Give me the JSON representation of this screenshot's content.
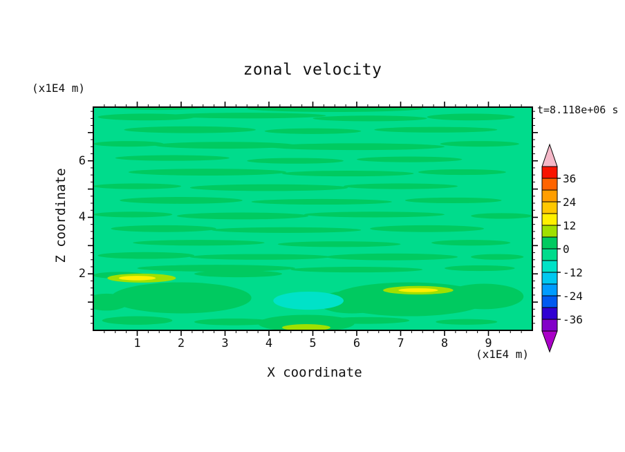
{
  "title": "zonal velocity",
  "timestamp": "t=8.118e+06 s",
  "x_axis": {
    "label": "X coordinate",
    "unit": "(x1E4 m)",
    "ticks": [
      1,
      2,
      3,
      4,
      5,
      6,
      7,
      8,
      9
    ]
  },
  "z_axis": {
    "label": "Z coordinate",
    "unit": "(x1E4 m)",
    "ticks": [
      2,
      4,
      6
    ]
  },
  "colorbar": {
    "labels": [
      "36",
      "24",
      "12",
      "0",
      "-12",
      "-24",
      "-36"
    ],
    "band_colors_top_to_bottom": [
      "#f81400",
      "#ff6400",
      "#ff9e00",
      "#ffc800",
      "#fff000",
      "#a0e000",
      "#00ca60",
      "#00dc8c",
      "#00e2c8",
      "#00c8f0",
      "#009cff",
      "#005af0",
      "#3000d2",
      "#8200c8"
    ],
    "arrow_top_color": "#f5b8c8",
    "arrow_bottom_color": "#aa00c8"
  },
  "chart_data": {
    "type": "heatmap",
    "title": "zonal velocity",
    "xlabel": "X coordinate (x1E4 m)",
    "ylabel": "Z coordinate (x1E4 m)",
    "time_label": "t=8.118e+06 s",
    "x_range": [
      0,
      10
    ],
    "z_range": [
      0,
      7.9
    ],
    "contour_levels": [
      -42,
      -36,
      -30,
      -24,
      -18,
      -12,
      -6,
      0,
      6,
      12,
      18,
      24,
      30,
      36,
      42
    ],
    "background_value_band": "-6 to 0",
    "background_color": "#00dc8c",
    "band_palette": {
      "g": "#00ca60",
      "yg": "#a0e000",
      "y": "#fff000",
      "t": "#00e2c8"
    },
    "features": [
      {
        "band": "g",
        "blobs": [
          [
            1.2,
            7.55,
            1.1,
            0.12
          ],
          [
            3.5,
            7.6,
            1.8,
            0.1
          ],
          [
            6.3,
            7.5,
            1.3,
            0.1
          ],
          [
            8.6,
            7.55,
            1.0,
            0.12
          ],
          [
            5.5,
            7.85,
            2.0,
            0.12
          ],
          [
            1.5,
            7.9,
            1.0,
            0.1
          ],
          [
            2.2,
            7.1,
            1.5,
            0.12
          ],
          [
            5.0,
            7.05,
            1.1,
            0.1
          ],
          [
            7.8,
            7.1,
            1.4,
            0.1
          ],
          [
            0.8,
            6.6,
            0.8,
            0.1
          ],
          [
            3.0,
            6.55,
            1.6,
            0.12
          ],
          [
            6.0,
            6.5,
            2.0,
            0.12
          ],
          [
            8.8,
            6.6,
            0.9,
            0.1
          ],
          [
            1.8,
            6.1,
            1.3,
            0.1
          ],
          [
            4.6,
            6.0,
            1.1,
            0.1
          ],
          [
            7.2,
            6.05,
            1.2,
            0.1
          ],
          [
            2.6,
            5.6,
            1.8,
            0.12
          ],
          [
            5.8,
            5.55,
            1.5,
            0.1
          ],
          [
            8.4,
            5.6,
            1.0,
            0.1
          ],
          [
            1.0,
            5.1,
            1.0,
            0.1
          ],
          [
            4.0,
            5.05,
            1.8,
            0.12
          ],
          [
            7.0,
            5.1,
            1.3,
            0.1
          ],
          [
            2.0,
            4.6,
            1.4,
            0.12
          ],
          [
            5.2,
            4.55,
            1.6,
            0.1
          ],
          [
            8.2,
            4.6,
            1.1,
            0.1
          ],
          [
            0.9,
            4.1,
            0.9,
            0.1
          ],
          [
            3.4,
            4.05,
            1.5,
            0.12
          ],
          [
            6.4,
            4.1,
            1.6,
            0.1
          ],
          [
            9.3,
            4.05,
            0.7,
            0.1
          ],
          [
            1.6,
            3.6,
            1.2,
            0.12
          ],
          [
            4.4,
            3.55,
            1.7,
            0.1
          ],
          [
            7.6,
            3.6,
            1.3,
            0.12
          ],
          [
            2.4,
            3.1,
            1.5,
            0.1
          ],
          [
            5.6,
            3.05,
            1.4,
            0.1
          ],
          [
            8.6,
            3.1,
            0.9,
            0.1
          ],
          [
            1.2,
            2.65,
            1.1,
            0.12
          ],
          [
            3.8,
            2.6,
            1.6,
            0.1
          ],
          [
            6.8,
            2.6,
            1.5,
            0.12
          ],
          [
            9.2,
            2.6,
            0.6,
            0.1
          ],
          [
            2.8,
            2.2,
            1.8,
            0.12
          ],
          [
            6.0,
            2.15,
            1.5,
            0.1
          ],
          [
            8.8,
            2.2,
            0.8,
            0.1
          ],
          [
            3.3,
            2.0,
            1.0,
            0.12
          ],
          [
            0.6,
            1.95,
            0.6,
            0.12
          ],
          [
            2.0,
            1.15,
            1.6,
            0.55
          ],
          [
            7.2,
            1.1,
            1.8,
            0.6
          ],
          [
            5.9,
            1.0,
            0.8,
            0.4
          ],
          [
            8.9,
            1.2,
            0.9,
            0.45
          ],
          [
            4.85,
            0.25,
            1.1,
            0.3
          ],
          [
            1.0,
            0.35,
            0.8,
            0.15
          ],
          [
            3.2,
            0.3,
            0.9,
            0.12
          ],
          [
            6.2,
            0.35,
            1.0,
            0.12
          ],
          [
            8.5,
            0.3,
            0.7,
            0.1
          ],
          [
            0.3,
            1.0,
            0.5,
            0.3
          ]
        ]
      },
      {
        "band": "yg",
        "blobs": [
          [
            1.1,
            1.85,
            0.78,
            0.16
          ],
          [
            7.4,
            1.42,
            0.8,
            0.15
          ],
          [
            4.85,
            0.1,
            0.55,
            0.12
          ]
        ]
      },
      {
        "band": "y",
        "blobs": [
          [
            1.0,
            1.85,
            0.42,
            0.08
          ],
          [
            7.4,
            1.42,
            0.45,
            0.07
          ]
        ]
      },
      {
        "band": "t",
        "blobs": [
          [
            4.9,
            1.05,
            0.8,
            0.32
          ]
        ]
      }
    ]
  }
}
